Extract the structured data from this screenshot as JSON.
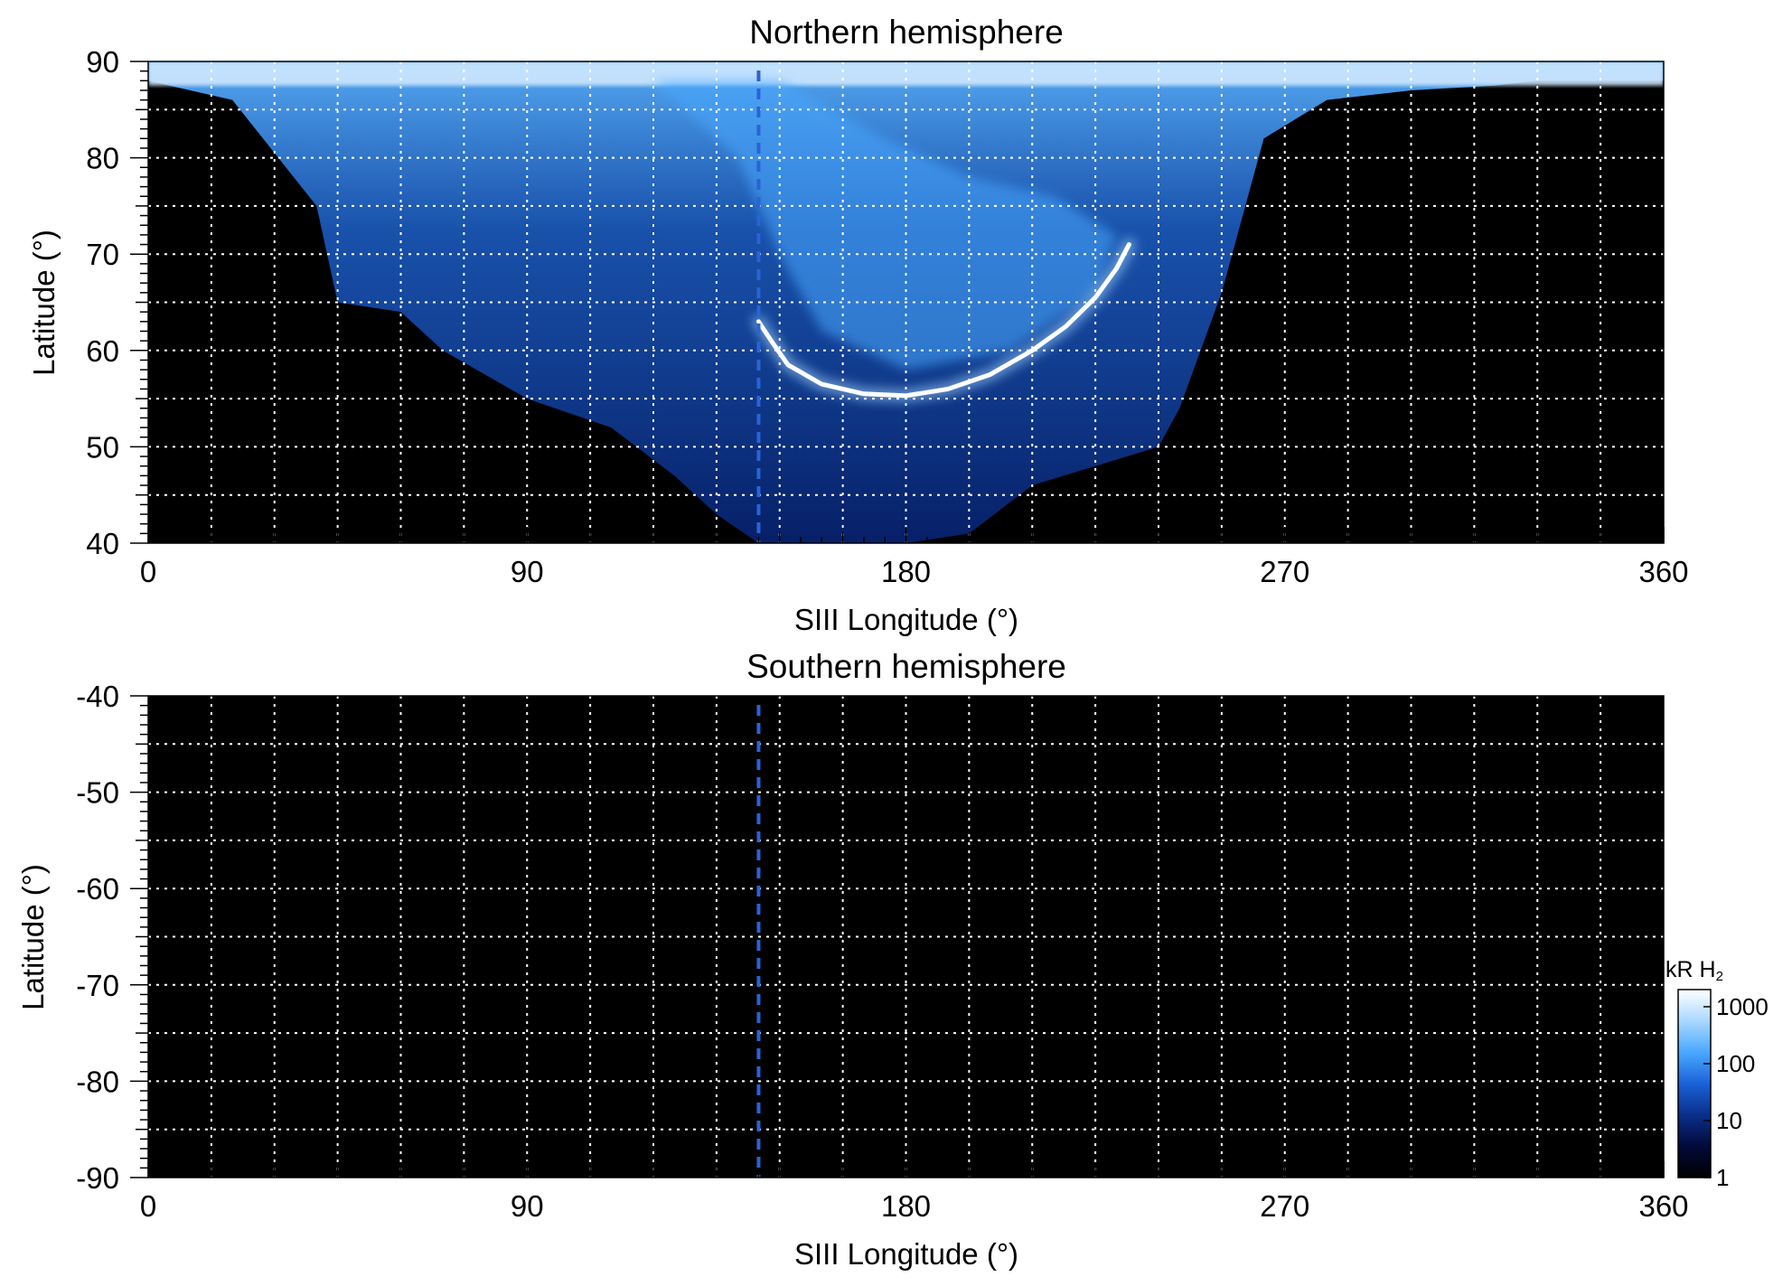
{
  "colors": {
    "background": "#000000",
    "grid": "#ffffff",
    "marker": "#2a63d6",
    "aurora_bright": "#ffffff",
    "aurora_mid": "#4aa8ff",
    "aurora_dim": "#0a2f8a"
  },
  "colorbar": {
    "title_main": "kR H",
    "title_sub": "2",
    "scale": "log",
    "ticks": [
      "1000",
      "100",
      "10",
      "1"
    ],
    "tick_values": [
      1000,
      100,
      10,
      1
    ],
    "range": [
      1,
      2000
    ],
    "stops": [
      "#000000",
      "#020a3a",
      "#0a2f8a",
      "#1a62d8",
      "#4aa8ff",
      "#a9d8ff",
      "#ffffff"
    ]
  },
  "chart_data": [
    {
      "type": "heatmap",
      "title": "Northern hemisphere",
      "xlabel": "SIII Longitude (°)",
      "ylabel": "Latitude (°)",
      "xlim": [
        0,
        360
      ],
      "ylim": [
        40,
        90
      ],
      "x_ticks": [
        0,
        90,
        180,
        270,
        360
      ],
      "x_tick_labels": [
        "0",
        "90",
        "180",
        "270",
        "360"
      ],
      "y_ticks": [
        90,
        80,
        70,
        60,
        50,
        40
      ],
      "y_tick_labels": [
        "90",
        "80",
        "70",
        "60",
        "50",
        "40"
      ],
      "grid": true,
      "grid_x_step": 15,
      "grid_y_step": 5,
      "marker_longitude": 145,
      "observed_region_lower_boundary": {
        "lon": [
          0,
          10,
          20,
          40,
          45,
          60,
          70,
          90,
          110,
          125,
          135,
          145,
          160,
          180,
          195,
          210,
          225,
          240,
          245,
          255,
          265,
          280,
          300,
          320,
          330,
          360
        ],
        "lat": [
          88,
          87,
          86,
          75,
          65,
          64,
          60,
          55,
          52,
          47,
          43,
          40,
          40,
          40,
          41,
          46,
          48,
          50,
          54,
          66,
          82,
          86,
          87,
          87.5,
          88,
          88
        ]
      },
      "main_oval": {
        "lon": [
          145,
          148,
          152,
          160,
          170,
          180,
          190,
          200,
          210,
          218,
          225,
          230,
          233
        ],
        "lat": [
          63,
          61,
          58.5,
          56.5,
          55.5,
          55.3,
          56,
          57.5,
          60,
          62.5,
          65.5,
          68.5,
          71
        ]
      }
    },
    {
      "type": "heatmap",
      "title": "Southern hemisphere",
      "xlabel": "SIII Longitude (°)",
      "ylabel": "Latitude (°)",
      "xlim": [
        0,
        360
      ],
      "ylim": [
        -90,
        -40
      ],
      "x_ticks": [
        0,
        90,
        180,
        270,
        360
      ],
      "x_tick_labels": [
        "0",
        "90",
        "180",
        "270",
        "360"
      ],
      "y_ticks": [
        -40,
        -50,
        -60,
        -70,
        -80,
        -90
      ],
      "y_tick_labels": [
        "-40",
        "-50",
        "-60",
        "-70",
        "-80",
        "-90"
      ],
      "grid": true,
      "grid_x_step": 15,
      "grid_y_step": 5,
      "marker_longitude": 145
    }
  ]
}
